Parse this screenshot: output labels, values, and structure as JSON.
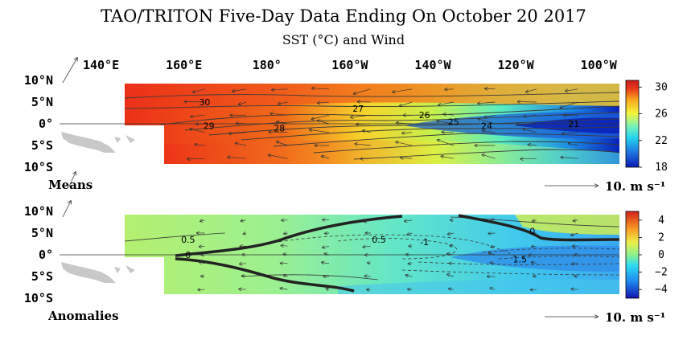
{
  "chart_data": {
    "type": "heatmap",
    "title": "TAO/TRITON Five-Day Data Ending On October 20 2017",
    "subtitle": "SST (°C) and Wind",
    "x_tick_labels": [
      "140°E",
      "160°E",
      "180°",
      "160°W",
      "140°W",
      "120°W",
      "100°W"
    ],
    "x_tick_values_lon_east": [
      140,
      160,
      180,
      200,
      220,
      240,
      260
    ],
    "x_range_lon_east": [
      130,
      265
    ],
    "y_tick_labels": [
      "10°N",
      "5°N",
      "0°",
      "5°S",
      "10°S"
    ],
    "y_tick_values": [
      10,
      5,
      0,
      -5,
      -10
    ],
    "y_range": [
      -10,
      10
    ],
    "panels": [
      {
        "name": "means",
        "label": "Means",
        "colorbar": {
          "min": 18,
          "max": 31,
          "ticks": [
            "30",
            "26",
            "22",
            "18"
          ],
          "tick_values": [
            30,
            26,
            22,
            18
          ]
        },
        "contour_labels": [
          {
            "text": "30",
            "lon": 165,
            "lat": 5
          },
          {
            "text": "29",
            "lon": 166,
            "lat": -0.5
          },
          {
            "text": "28",
            "lon": 183,
            "lat": -1
          },
          {
            "text": "27",
            "lon": 202,
            "lat": 3.5
          },
          {
            "text": "26",
            "lon": 218,
            "lat": 2
          },
          {
            "text": "25",
            "lon": 225,
            "lat": 0.5
          },
          {
            "text": "24",
            "lon": 233,
            "lat": -0.5
          },
          {
            "text": "21",
            "lon": 254,
            "lat": 0
          }
        ],
        "wind_reference": "10. m s⁻¹"
      },
      {
        "name": "anomalies",
        "label": "Anomalies",
        "colorbar": {
          "min": -5,
          "max": 5,
          "ticks": [
            "4",
            "2",
            "0",
            "−2",
            "−4"
          ],
          "tick_values": [
            4,
            2,
            0,
            -2,
            -4
          ]
        },
        "contour_labels": [
          {
            "text": "0.5",
            "lon": 161,
            "lat": 3.5
          },
          {
            "text": "0",
            "lon": 161,
            "lat": 0
          },
          {
            "text": "0.5",
            "lon": 207,
            "lat": 3.5
          },
          {
            "text": "-1",
            "lon": 218,
            "lat": 3
          },
          {
            "text": "0",
            "lon": 244,
            "lat": 5.5
          },
          {
            "text": "1.5",
            "lon": 241,
            "lat": -1
          }
        ],
        "wind_reference": "10. m s⁻¹"
      }
    ],
    "grid": false
  },
  "colors": {
    "means_scale": [
      "#0a1cb4",
      "#1f7ae0",
      "#25d4f0",
      "#7ef3b0",
      "#f4f53a",
      "#f8a41c",
      "#ec3a1c",
      "#c81818"
    ],
    "anomaly_scale": [
      "#1414b0",
      "#1e8cf0",
      "#30dcf0",
      "#8cf08c",
      "#ecf04a",
      "#f79a22",
      "#d4201a"
    ],
    "land": "#c8c8c8"
  }
}
